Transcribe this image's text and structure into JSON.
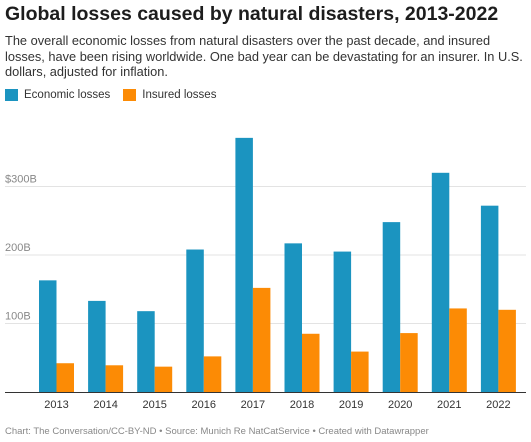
{
  "title": "Global losses caused by natural disasters, 2013-2022",
  "subtitle": "The overall economic losses from natural disasters over the past decade, and insured losses, have been rising worldwide. One bad year can be devastating for an insurer. In U.S. dollars, adjusted for inflation.",
  "footer": "Chart: The Conversation/CC-BY-ND • Source: Munich Re NatCatService • Created with Datawrapper",
  "colors": {
    "economic": "#1b94c0",
    "insured": "#fc8b05"
  },
  "chart_data": {
    "type": "bar",
    "categories": [
      "2013",
      "2014",
      "2015",
      "2016",
      "2017",
      "2018",
      "2019",
      "2020",
      "2021",
      "2022"
    ],
    "series": [
      {
        "name": "Economic losses",
        "values": [
          163,
          133,
          118,
          208,
          371,
          217,
          205,
          248,
          320,
          272
        ]
      },
      {
        "name": "Insured losses",
        "values": [
          42,
          39,
          37,
          52,
          152,
          85,
          59,
          86,
          122,
          120
        ]
      }
    ],
    "y_ticks": [
      {
        "value": 100,
        "label": "100B"
      },
      {
        "value": 200,
        "label": "200B"
      },
      {
        "value": 300,
        "label": "$300B"
      }
    ],
    "ylim": [
      0,
      380
    ],
    "grid": true,
    "legend": "top-left"
  }
}
